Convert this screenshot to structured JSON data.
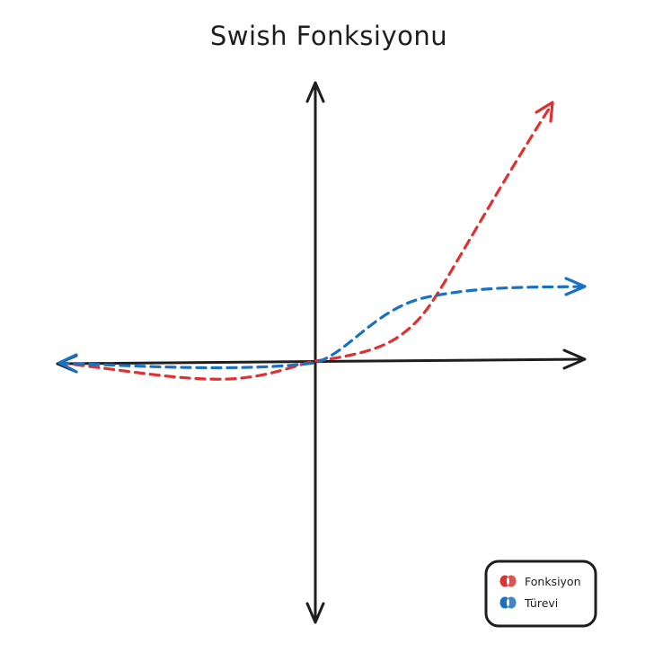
{
  "title": "Swish Fonksiyonu",
  "colors": {
    "ink": "#1e1e1e",
    "function": "#e03131",
    "derivative": "#1971c2",
    "background": "#ffffff"
  },
  "legend": {
    "items": [
      {
        "label": "Fonksiyon",
        "color": "#e03131",
        "icon": "red-swatch-icon"
      },
      {
        "label": "Türevi",
        "color": "#1971c2",
        "icon": "blue-swatch-icon"
      }
    ]
  },
  "series": [
    {
      "key": "function",
      "label": "Fonksiyon",
      "color": "#e03131"
    },
    {
      "key": "derivative",
      "label": "Türevi",
      "color": "#1971c2"
    }
  ]
}
